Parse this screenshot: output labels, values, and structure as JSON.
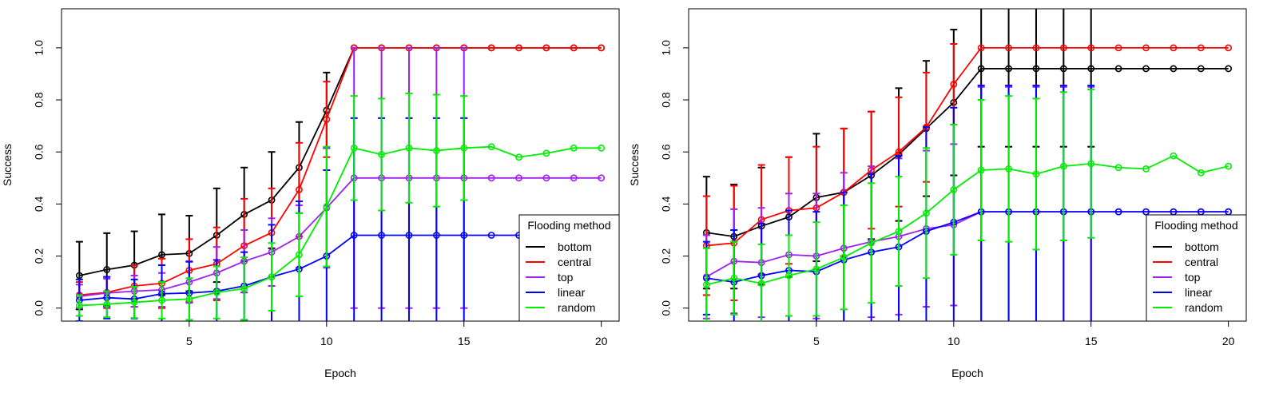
{
  "chart_data": [
    {
      "type": "line",
      "xlabel": "Epoch",
      "ylabel": "Success",
      "xlim": [
        0.35,
        20.65
      ],
      "ylim": [
        -0.05,
        1.15
      ],
      "xticks": [
        5,
        10,
        15,
        20
      ],
      "yticks": [
        0.0,
        0.2,
        0.4,
        0.6,
        0.8,
        1.0
      ],
      "legend": {
        "title": "Flooding method",
        "placement": "bottom-right"
      },
      "x": [
        1,
        2,
        3,
        4,
        5,
        6,
        7,
        8,
        9,
        10,
        11,
        12,
        13,
        14,
        15,
        16,
        17,
        18,
        19,
        20
      ],
      "series": [
        {
          "name": "bottom",
          "color": "#000000",
          "values": [
            0.125,
            0.148,
            0.165,
            0.205,
            0.21,
            0.28,
            0.36,
            0.415,
            0.54,
            0.76,
            1.0,
            1.0,
            1.0,
            1.0,
            1.0,
            1.0,
            1.0,
            1.0,
            1.0,
            1.0
          ],
          "err": [
            0.13,
            0.14,
            0.13,
            0.155,
            0.145,
            0.18,
            0.18,
            0.185,
            0.175,
            0.145,
            0,
            0,
            0,
            0,
            0,
            0,
            0,
            0,
            0,
            0
          ]
        },
        {
          "name": "central",
          "color": "#ff0000",
          "values": [
            0.05,
            0.06,
            0.085,
            0.095,
            0.145,
            0.17,
            0.24,
            0.29,
            0.455,
            0.725,
            1.0,
            1.0,
            1.0,
            1.0,
            1.0,
            1.0,
            1.0,
            1.0,
            1.0,
            1.0
          ],
          "err": [
            0.05,
            0.06,
            0.08,
            0.095,
            0.12,
            0.14,
            0.18,
            0.17,
            0.18,
            0.145,
            0,
            0,
            0,
            0,
            0,
            0,
            0,
            0,
            0,
            0
          ]
        },
        {
          "name": "top",
          "color": "#a020f0",
          "values": [
            0.045,
            0.058,
            0.065,
            0.07,
            0.1,
            0.135,
            0.18,
            0.215,
            0.275,
            0.385,
            0.5,
            0.5,
            0.5,
            0.5,
            0.5,
            0.5,
            0.5,
            0.5,
            0.5,
            0.5
          ],
          "err": [
            0.045,
            0.055,
            0.06,
            0.065,
            0.08,
            0.1,
            0.12,
            0.13,
            0.12,
            0.23,
            0.5,
            0.5,
            0.5,
            0.5,
            0.5,
            0,
            0,
            0,
            0,
            0
          ]
        },
        {
          "name": "linear",
          "color": "#0000ff",
          "values": [
            0.03,
            0.04,
            0.035,
            0.055,
            0.058,
            0.065,
            0.085,
            0.12,
            0.15,
            0.2,
            0.28,
            0.28,
            0.28,
            0.28,
            0.28,
            0.28,
            0.28,
            0.28,
            0.28,
            0.28
          ],
          "err": [
            0.08,
            0.08,
            0.075,
            0.11,
            0.12,
            0.12,
            0.13,
            0.2,
            0.26,
            0.33,
            0.45,
            0.45,
            0.45,
            0.45,
            0.45,
            0,
            0,
            0,
            0,
            0
          ]
        },
        {
          "name": "random",
          "color": "#00ee00",
          "values": [
            0.01,
            0.015,
            0.022,
            0.03,
            0.035,
            0.06,
            0.075,
            0.12,
            0.205,
            0.39,
            0.615,
            0.59,
            0.615,
            0.605,
            0.615,
            0.62,
            0.58,
            0.595,
            0.615,
            0.615
          ],
          "err": [
            0.04,
            0.05,
            0.06,
            0.07,
            0.08,
            0.1,
            0.12,
            0.13,
            0.16,
            0.23,
            0.2,
            0.215,
            0.21,
            0.215,
            0.2,
            0,
            0,
            0,
            0,
            0
          ]
        }
      ]
    },
    {
      "type": "line",
      "xlabel": "Epoch",
      "ylabel": "Success",
      "xlim": [
        0.35,
        20.65
      ],
      "ylim": [
        -0.05,
        1.15
      ],
      "xticks": [
        5,
        10,
        15,
        20
      ],
      "yticks": [
        0.0,
        0.2,
        0.4,
        0.6,
        0.8,
        1.0
      ],
      "legend": {
        "title": "Flooding method",
        "placement": "bottom-right"
      },
      "x": [
        1,
        2,
        3,
        4,
        5,
        6,
        7,
        8,
        9,
        10,
        11,
        12,
        13,
        14,
        15,
        16,
        17,
        18,
        19,
        20
      ],
      "series": [
        {
          "name": "bottom",
          "color": "#000000",
          "values": [
            0.29,
            0.275,
            0.315,
            0.35,
            0.425,
            0.445,
            0.51,
            0.59,
            0.69,
            0.79,
            0.92,
            0.92,
            0.92,
            0.92,
            0.92,
            0.92,
            0.92,
            0.92,
            0.92,
            0.92
          ],
          "err": [
            0.215,
            0.2,
            0.225,
            0.23,
            0.245,
            0.245,
            0.245,
            0.255,
            0.26,
            0.28,
            0.3,
            0.3,
            0.3,
            0.3,
            0.3,
            0,
            0,
            0,
            0,
            0
          ]
        },
        {
          "name": "central",
          "color": "#ff0000",
          "values": [
            0.24,
            0.25,
            0.34,
            0.375,
            0.385,
            0.445,
            0.53,
            0.6,
            0.695,
            0.86,
            1.0,
            1.0,
            1.0,
            1.0,
            1.0,
            1.0,
            1.0,
            1.0,
            1.0,
            1.0
          ],
          "err": [
            0.19,
            0.22,
            0.21,
            0.205,
            0.235,
            0.245,
            0.225,
            0.21,
            0.21,
            0.155,
            0,
            0,
            0,
            0,
            0,
            0,
            0,
            0,
            0,
            0
          ]
        },
        {
          "name": "top",
          "color": "#a020f0",
          "values": [
            0.12,
            0.18,
            0.175,
            0.205,
            0.2,
            0.23,
            0.255,
            0.275,
            0.305,
            0.32,
            0.37,
            0.37,
            0.37,
            0.37,
            0.37,
            0.37,
            0.37,
            0.37,
            0.37,
            0.37
          ],
          "err": [
            0.16,
            0.2,
            0.21,
            0.235,
            0.24,
            0.29,
            0.29,
            0.3,
            0.3,
            0.31,
            0.48,
            0.48,
            0.48,
            0.48,
            0.48,
            0,
            0,
            0,
            0,
            0
          ]
        },
        {
          "name": "linear",
          "color": "#0000ff",
          "values": [
            0.115,
            0.1,
            0.125,
            0.145,
            0.14,
            0.185,
            0.215,
            0.235,
            0.295,
            0.33,
            0.37,
            0.37,
            0.37,
            0.37,
            0.37,
            0.37,
            0.37,
            0.37,
            0.37,
            0.37
          ],
          "err": [
            0.14,
            0.2,
            0.2,
            0.23,
            0.23,
            0.26,
            0.3,
            0.35,
            0.4,
            0.44,
            0.485,
            0.485,
            0.485,
            0.485,
            0.485,
            0,
            0,
            0,
            0,
            0
          ]
        },
        {
          "name": "random",
          "color": "#00ee00",
          "values": [
            0.09,
            0.115,
            0.095,
            0.125,
            0.15,
            0.195,
            0.25,
            0.295,
            0.365,
            0.455,
            0.53,
            0.535,
            0.515,
            0.545,
            0.555,
            0.54,
            0.535,
            0.585,
            0.52,
            0.545
          ],
          "err": [
            0.14,
            0.14,
            0.15,
            0.155,
            0.18,
            0.2,
            0.23,
            0.21,
            0.25,
            0.25,
            0.27,
            0.28,
            0.29,
            0.285,
            0.285,
            0,
            0,
            0,
            0,
            0
          ]
        }
      ]
    }
  ]
}
